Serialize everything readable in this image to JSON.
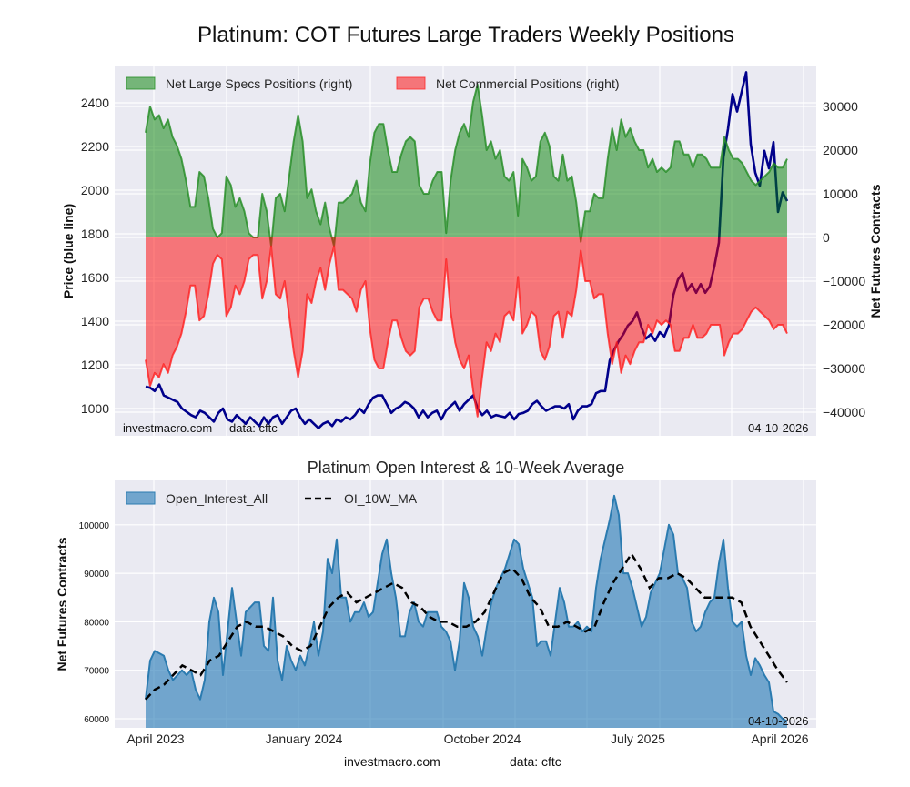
{
  "page_title": "Platinum: COT Futures Large Traders Weekly Positions",
  "watermark": {
    "site": "investmacro.com",
    "source": "data: cftc",
    "date": "04-10-2026"
  },
  "footer": {
    "site": "investmacro.com",
    "source": "data: cftc"
  },
  "colors": {
    "plot_bg": "#eaeaf2",
    "price": "#00008b",
    "specs": "#228b22",
    "commercial": "#ff2020",
    "oi": "#2b7bb0",
    "ma": "#000000"
  },
  "chart_data": [
    {
      "type": "area",
      "title": "Platinum: COT Futures Large Traders Weekly Positions",
      "x_range": [
        "2023-04-04",
        "2026-04-07"
      ],
      "ylabel_left": "Price (blue line)",
      "ylabel_right": "Net Futures Contracts",
      "left_ticks": [
        1000,
        1200,
        1400,
        1600,
        1800,
        2000,
        2200,
        2400
      ],
      "right_ticks": [
        -40000,
        -30000,
        -20000,
        -10000,
        0,
        10000,
        20000,
        30000
      ],
      "legend": [
        "Net Large Specs Positions (right)",
        "Net Commercial Positions (right)"
      ],
      "legend_position": "top-left",
      "grid": true,
      "series": [
        {
          "name": "Price",
          "axis": "left",
          "style": "line",
          "values": [
            1100,
            1095,
            1080,
            1110,
            1060,
            1050,
            1040,
            1030,
            1000,
            985,
            970,
            960,
            990,
            980,
            960,
            940,
            980,
            1000,
            950,
            940,
            970,
            950,
            930,
            960,
            940,
            920,
            960,
            930,
            960,
            970,
            930,
            960,
            990,
            1000,
            960,
            930,
            950,
            930,
            910,
            930,
            940,
            920,
            950,
            940,
            960,
            950,
            970,
            1000,
            980,
            1020,
            1050,
            1060,
            1060,
            1020,
            980,
            1000,
            1010,
            1030,
            1020,
            1000,
            960,
            990,
            960,
            980,
            990,
            950,
            990,
            1010,
            1030,
            990,
            1020,
            1040,
            1060,
            1000,
            970,
            990,
            960,
            970,
            965,
            960,
            980,
            950,
            975,
            980,
            990,
            1020,
            1035,
            1010,
            990,
            1000,
            1010,
            1010,
            1000,
            1020,
            950,
            990,
            1010,
            1010,
            1020,
            1070,
            1080,
            1080,
            1220,
            1270,
            1310,
            1340,
            1380,
            1400,
            1440,
            1370,
            1320,
            1340,
            1310,
            1350,
            1330,
            1380,
            1520,
            1590,
            1620,
            1540,
            1570,
            1530,
            1570,
            1530,
            1560,
            1650,
            1760,
            2150,
            2280,
            2440,
            2360,
            2450,
            2540,
            2210,
            2080,
            2020,
            2180,
            2100,
            2220,
            1900,
            1990,
            1950
          ]
        },
        {
          "name": "Net Large Specs Positions (right)",
          "axis": "right",
          "style": "area",
          "unit": "thousand contracts",
          "values": [
            24,
            30,
            27,
            28,
            25,
            27,
            23,
            21,
            18,
            13,
            7,
            7,
            15,
            14,
            9,
            2,
            0,
            1,
            14,
            12,
            7,
            9,
            6,
            1,
            0,
            0,
            10,
            6,
            -2,
            9,
            10,
            6,
            14,
            22,
            28,
            22,
            9,
            11,
            6,
            3,
            8,
            2,
            -2,
            8,
            8,
            9,
            10,
            13,
            8,
            6,
            17,
            24,
            26,
            26,
            20,
            15,
            15,
            19,
            22,
            23,
            22,
            12,
            10,
            10,
            13,
            15,
            15,
            1,
            13,
            20,
            24,
            26,
            23,
            31,
            35,
            28,
            20,
            22,
            18,
            20,
            14,
            13,
            15,
            5,
            18,
            16,
            13,
            14,
            22,
            24,
            21,
            14,
            13,
            19,
            13,
            14,
            8,
            -1,
            6,
            6,
            10,
            9,
            9,
            18,
            25,
            20,
            27,
            23,
            25,
            22,
            20,
            20,
            16,
            18,
            15,
            16,
            15,
            16,
            22,
            22,
            19,
            19,
            16,
            19,
            19,
            18,
            16,
            16,
            16,
            23,
            20,
            18,
            18,
            17,
            15,
            13,
            12,
            13,
            14,
            15,
            17,
            16,
            16,
            18
          ]
        },
        {
          "name": "Net Commercial Positions (right)",
          "axis": "right",
          "style": "area",
          "unit": "thousand contracts",
          "values": [
            -28,
            -34,
            -31,
            -32,
            -29,
            -31,
            -27,
            -25,
            -22,
            -17,
            -11,
            -11,
            -19,
            -18,
            -13,
            -6,
            -4,
            -5,
            -18,
            -16,
            -11,
            -13,
            -10,
            -5,
            -4,
            -4,
            -14,
            -10,
            -2,
            -13,
            -14,
            -10,
            -18,
            -26,
            -32,
            -26,
            -13,
            -15,
            -10,
            -7,
            -12,
            -6,
            -2,
            -12,
            -12,
            -13,
            -14,
            -17,
            -12,
            -10,
            -21,
            -28,
            -30,
            -30,
            -24,
            -19,
            -19,
            -23,
            -26,
            -27,
            -26,
            -16,
            -14,
            -14,
            -17,
            -19,
            -19,
            -5,
            -17,
            -24,
            -28,
            -30,
            -27,
            -35,
            -41,
            -32,
            -24,
            -26,
            -22,
            -24,
            -18,
            -17,
            -19,
            -9,
            -22,
            -20,
            -17,
            -18,
            -26,
            -28,
            -25,
            -18,
            -17,
            -23,
            -17,
            -18,
            -12,
            -3,
            -10,
            -10,
            -14,
            -13,
            -13,
            -22,
            -29,
            -24,
            -31,
            -27,
            -29,
            -26,
            -24,
            -24,
            -20,
            -22,
            -19,
            -20,
            -19,
            -20,
            -26,
            -26,
            -23,
            -23,
            -20,
            -23,
            -23,
            -22,
            -20,
            -20,
            -20,
            -27,
            -24,
            -22,
            -22,
            -21,
            -19,
            -17,
            -16,
            -17,
            -18,
            -19,
            -21,
            -20,
            -20,
            -22
          ]
        }
      ]
    },
    {
      "type": "area",
      "title": "Platinum Open Interest & 10-Week Average",
      "x_range": [
        "2023-04-04",
        "2026-04-07"
      ],
      "xticks": [
        "April 2023",
        "January 2024",
        "October 2024",
        "July 2025",
        "April 2026"
      ],
      "ylabel": "Net Futures Contracts",
      "yticks": [
        60000,
        70000,
        80000,
        90000,
        100000
      ],
      "legend": [
        "Open_Interest_All",
        "OI_10W_MA"
      ],
      "legend_position": "top-left",
      "grid": true,
      "series": [
        {
          "name": "Open_Interest_All",
          "style": "area",
          "unit": "thousand contracts",
          "values": [
            64,
            72,
            74,
            73.5,
            73,
            70,
            68,
            69,
            70,
            69,
            70,
            66,
            64,
            68,
            80,
            85,
            82,
            69,
            78,
            87,
            80,
            73,
            82,
            83,
            84,
            84,
            75,
            74,
            85,
            72,
            68,
            75,
            72,
            70,
            73,
            71,
            75,
            80,
            73,
            78,
            93,
            90,
            97,
            85,
            85,
            80,
            82,
            82,
            84,
            81,
            82,
            88,
            94,
            97,
            90,
            85,
            77,
            77,
            82,
            84,
            80,
            79,
            82,
            82,
            82,
            79,
            78,
            76,
            70,
            76,
            88,
            85,
            79,
            77,
            73,
            79,
            84,
            87,
            89,
            91,
            94,
            97,
            96,
            91,
            88,
            85,
            75,
            76,
            76,
            73,
            80,
            87,
            84,
            79,
            79,
            80,
            78,
            79,
            78,
            87,
            93,
            97,
            101,
            106,
            102,
            90,
            90,
            87,
            83,
            79,
            81,
            86,
            88,
            90,
            95,
            100,
            98,
            90,
            89,
            87,
            80,
            78,
            79,
            82,
            84,
            85,
            92,
            97,
            87,
            80,
            79,
            80,
            73,
            69,
            72.5,
            71,
            69,
            67.5,
            61.5,
            61,
            60,
            59.5
          ]
        },
        {
          "name": "OI_10W_MA",
          "style": "dashed-line",
          "unit": "thousand contracts",
          "values": [
            64,
            66,
            67,
            69,
            71,
            70,
            69,
            72,
            73,
            76,
            79,
            80,
            79,
            79,
            78,
            77,
            75,
            74,
            75,
            79,
            83,
            85,
            86,
            84,
            85,
            86,
            87,
            88,
            87,
            84,
            83,
            81,
            80,
            80,
            79,
            79,
            80,
            82,
            86,
            90,
            91,
            89,
            85,
            83,
            79,
            79,
            80,
            79,
            78,
            79,
            84,
            88,
            91,
            94,
            91,
            87,
            89,
            89,
            90,
            89,
            87,
            85,
            85,
            85,
            85,
            84,
            79,
            76,
            73,
            70,
            67.5
          ]
        }
      ]
    }
  ]
}
